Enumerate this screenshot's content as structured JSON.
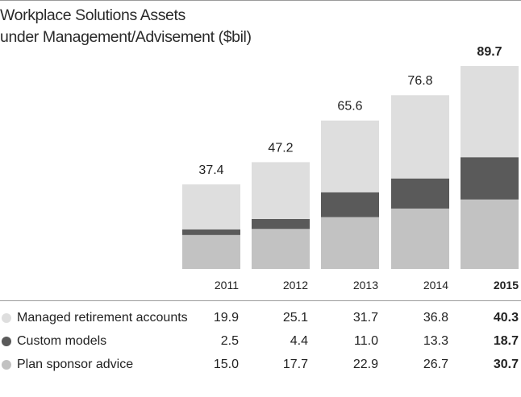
{
  "chart_data": {
    "type": "bar",
    "stacked": true,
    "title": "Workplace Solutions Assets",
    "subtitle": "under Management/Advisement ($bil)",
    "categories": [
      "2011",
      "2012",
      "2013",
      "2014",
      "2015"
    ],
    "totals": [
      "37.4",
      "47.2",
      "65.6",
      "76.8",
      "89.7"
    ],
    "highlight_category": "2015",
    "series": [
      {
        "name": "Managed retirement accounts",
        "values": [
          "19.9",
          "25.1",
          "31.7",
          "36.8",
          "40.3"
        ],
        "color": "#dedede"
      },
      {
        "name": "Custom models",
        "values": [
          "2.5",
          "4.4",
          "11.0",
          "13.3",
          "18.7"
        ],
        "color": "#5a5a5a"
      },
      {
        "name": "Plan sponsor advice",
        "values": [
          "15.0",
          "17.7",
          "22.9",
          "26.7",
          "30.7"
        ],
        "color": "#c2c2c2"
      }
    ],
    "stack_order_bottom_to_top": [
      "Plan sponsor advice",
      "Custom models",
      "Managed retirement accounts"
    ],
    "ylim": [
      0,
      89.7
    ],
    "grid": false,
    "legend": "table-below"
  }
}
